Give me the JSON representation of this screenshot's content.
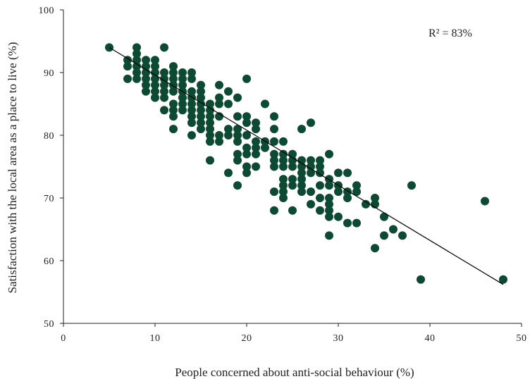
{
  "chart_data": {
    "type": "scatter",
    "title": "",
    "xlabel": "People concerned about anti-social behaviour (%)",
    "ylabel": "Satisfaction with the local area as a place to live (%)",
    "xlim": [
      0,
      50
    ],
    "ylim": [
      50,
      100
    ],
    "xticks": [
      0,
      10,
      20,
      30,
      40,
      50
    ],
    "yticks": [
      50,
      60,
      70,
      80,
      90,
      100
    ],
    "grid": false,
    "annotation": "R² = 83%",
    "colors": {
      "points": "#0c4a33",
      "trendline": "#000000",
      "axes": "#222222"
    },
    "trendline": {
      "x": [
        5,
        48
      ],
      "y": [
        94,
        56.2
      ]
    },
    "points": [
      [
        5,
        94
      ],
      [
        7,
        92
      ],
      [
        7,
        91
      ],
      [
        7,
        89
      ],
      [
        8,
        94
      ],
      [
        8,
        93
      ],
      [
        8,
        92
      ],
      [
        8,
        91
      ],
      [
        8,
        90
      ],
      [
        8,
        89
      ],
      [
        9,
        92
      ],
      [
        9,
        91
      ],
      [
        9,
        90
      ],
      [
        9,
        89
      ],
      [
        9,
        88
      ],
      [
        9,
        87
      ],
      [
        10,
        92
      ],
      [
        10,
        91
      ],
      [
        10,
        90
      ],
      [
        10,
        89
      ],
      [
        10,
        88
      ],
      [
        10,
        87
      ],
      [
        10,
        86
      ],
      [
        11,
        94
      ],
      [
        11,
        90
      ],
      [
        11,
        89
      ],
      [
        11,
        88
      ],
      [
        11,
        87
      ],
      [
        11,
        86
      ],
      [
        11,
        84
      ],
      [
        12,
        91
      ],
      [
        12,
        90
      ],
      [
        12,
        89
      ],
      [
        12,
        88
      ],
      [
        12,
        87
      ],
      [
        12,
        85
      ],
      [
        12,
        84
      ],
      [
        12,
        83
      ],
      [
        12,
        81
      ],
      [
        13,
        90
      ],
      [
        13,
        89
      ],
      [
        13,
        88
      ],
      [
        13,
        87
      ],
      [
        13,
        86
      ],
      [
        13,
        85
      ],
      [
        13,
        84
      ],
      [
        14,
        90
      ],
      [
        14,
        89
      ],
      [
        14,
        87
      ],
      [
        14,
        86
      ],
      [
        14,
        85
      ],
      [
        14,
        84
      ],
      [
        14,
        83
      ],
      [
        14,
        82
      ],
      [
        14,
        80
      ],
      [
        15,
        88
      ],
      [
        15,
        87
      ],
      [
        15,
        86
      ],
      [
        15,
        85
      ],
      [
        15,
        84
      ],
      [
        15,
        83
      ],
      [
        15,
        82
      ],
      [
        15,
        81
      ],
      [
        16,
        85
      ],
      [
        16,
        84
      ],
      [
        16,
        83
      ],
      [
        16,
        82
      ],
      [
        16,
        81
      ],
      [
        16,
        80
      ],
      [
        16,
        79
      ],
      [
        16,
        76
      ],
      [
        17,
        88
      ],
      [
        17,
        86
      ],
      [
        17,
        85
      ],
      [
        17,
        83
      ],
      [
        17,
        80
      ],
      [
        17,
        79
      ],
      [
        18,
        87
      ],
      [
        18,
        85
      ],
      [
        18,
        81
      ],
      [
        18,
        80
      ],
      [
        18,
        74
      ],
      [
        19,
        86
      ],
      [
        19,
        83
      ],
      [
        19,
        81
      ],
      [
        19,
        80
      ],
      [
        19,
        79
      ],
      [
        19,
        77
      ],
      [
        19,
        76
      ],
      [
        19,
        72
      ],
      [
        20,
        89
      ],
      [
        20,
        83
      ],
      [
        20,
        82
      ],
      [
        20,
        80
      ],
      [
        20,
        78
      ],
      [
        20,
        77
      ],
      [
        20,
        75
      ],
      [
        20,
        74
      ],
      [
        21,
        82
      ],
      [
        21,
        81
      ],
      [
        21,
        79
      ],
      [
        21,
        78
      ],
      [
        21,
        77
      ],
      [
        21,
        75
      ],
      [
        22,
        85
      ],
      [
        22,
        79
      ],
      [
        22,
        78
      ],
      [
        23,
        83
      ],
      [
        23,
        81
      ],
      [
        23,
        79
      ],
      [
        23,
        77
      ],
      [
        23,
        76
      ],
      [
        23,
        75
      ],
      [
        23,
        71
      ],
      [
        23,
        68
      ],
      [
        24,
        79
      ],
      [
        24,
        77
      ],
      [
        24,
        76
      ],
      [
        24,
        75
      ],
      [
        24,
        73
      ],
      [
        24,
        72
      ],
      [
        24,
        71
      ],
      [
        24,
        70
      ],
      [
        25,
        77
      ],
      [
        25,
        76
      ],
      [
        25,
        75
      ],
      [
        25,
        73
      ],
      [
        25,
        72
      ],
      [
        25,
        68
      ],
      [
        26,
        81
      ],
      [
        26,
        76
      ],
      [
        26,
        75
      ],
      [
        26,
        74
      ],
      [
        26,
        73
      ],
      [
        26,
        72
      ],
      [
        26,
        71
      ],
      [
        27,
        82
      ],
      [
        27,
        76
      ],
      [
        27,
        75
      ],
      [
        27,
        74
      ],
      [
        27,
        71
      ],
      [
        27,
        69
      ],
      [
        28,
        76
      ],
      [
        28,
        75
      ],
      [
        28,
        74
      ],
      [
        28,
        72
      ],
      [
        28,
        70
      ],
      [
        28,
        68
      ],
      [
        29,
        77
      ],
      [
        29,
        73
      ],
      [
        29,
        72
      ],
      [
        29,
        70
      ],
      [
        29,
        69
      ],
      [
        29,
        68
      ],
      [
        29,
        67
      ],
      [
        29,
        64
      ],
      [
        30,
        74
      ],
      [
        30,
        72
      ],
      [
        30,
        71
      ],
      [
        30,
        67
      ],
      [
        31,
        74
      ],
      [
        31,
        71
      ],
      [
        31,
        70
      ],
      [
        31,
        66
      ],
      [
        32,
        72
      ],
      [
        32,
        71
      ],
      [
        32,
        66
      ],
      [
        33,
        69
      ],
      [
        34,
        70
      ],
      [
        34,
        69
      ],
      [
        34,
        62
      ],
      [
        35,
        67
      ],
      [
        35,
        64
      ],
      [
        36,
        65
      ],
      [
        37,
        64
      ],
      [
        38,
        72
      ],
      [
        39,
        57
      ],
      [
        46,
        69.5
      ],
      [
        48,
        57
      ]
    ]
  }
}
